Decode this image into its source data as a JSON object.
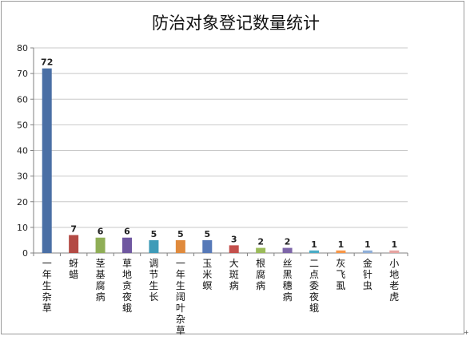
{
  "chart_data": {
    "type": "bar",
    "title": "防治对象登记数量统计",
    "xlabel": "",
    "ylabel": "",
    "ylim": [
      0,
      80
    ],
    "yticks": [
      0,
      10,
      20,
      30,
      40,
      50,
      60,
      70,
      80
    ],
    "grid": "horizontal",
    "legend": "none",
    "categories": [
      "一年生杂草",
      "蚜蜡",
      "茎基腐病",
      "草地贪夜蛾",
      "调节生长",
      "一年生阔叶杂草",
      "玉米螟",
      "大斑病",
      "根腐病",
      "丝黑穗病",
      "二点委夜蛾",
      "灰飞虱",
      "金针虫",
      "小地老虎"
    ],
    "values": [
      72,
      7,
      6,
      6,
      5,
      5,
      5,
      3,
      2,
      2,
      1,
      1,
      1,
      1
    ],
    "colors": [
      "#4a6fa5",
      "#b34a44",
      "#8fae56",
      "#6f57a0",
      "#3e9bb8",
      "#e08a3c",
      "#5679b8",
      "#c4504c",
      "#9bbb59",
      "#7d65a8",
      "#4aacc6",
      "#f79646",
      "#8eaed8",
      "#e6a3a1"
    ]
  },
  "corner_mark": "+"
}
